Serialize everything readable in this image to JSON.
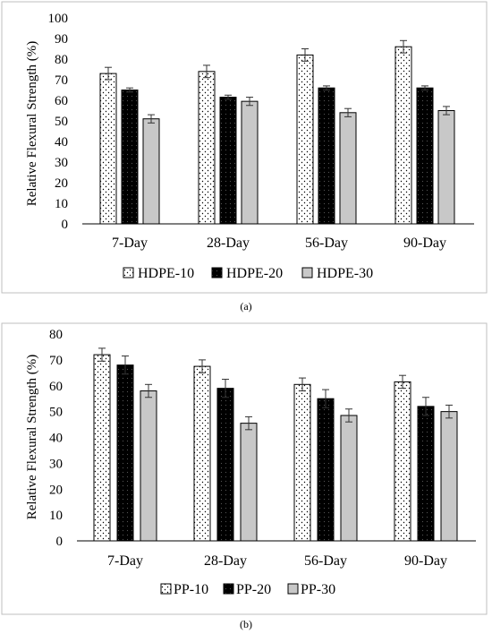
{
  "panels": [
    {
      "label": "(a)",
      "chart_data": {
        "type": "bar",
        "title": "",
        "xlabel": "",
        "ylabel": "Relative Flexural Strength (%)",
        "ylim": [
          0,
          100
        ],
        "yticks": [
          0,
          10,
          20,
          30,
          40,
          50,
          60,
          70,
          80,
          90,
          100
        ],
        "grid": false,
        "legend": "bottom",
        "categories": [
          "7-Day",
          "28-Day",
          "56-Day",
          "90-Day"
        ],
        "series": [
          {
            "name": "HDPE-10",
            "values": [
              73,
              74,
              82,
              86
            ],
            "errors": [
              3,
              3,
              3,
              3
            ],
            "pattern": "dots"
          },
          {
            "name": "HDPE-20",
            "values": [
              65,
              61.5,
              66,
              66
            ],
            "errors": [
              1,
              1,
              1,
              1
            ],
            "pattern": "black"
          },
          {
            "name": "HDPE-30",
            "values": [
              51,
              59.5,
              54,
              55
            ],
            "errors": [
              2,
              2,
              2,
              2
            ],
            "pattern": "gray"
          }
        ]
      }
    },
    {
      "label": "(b)",
      "chart_data": {
        "type": "bar",
        "title": "",
        "xlabel": "",
        "ylabel": "Relative Flexural Strength (%)",
        "ylim": [
          0,
          80
        ],
        "yticks": [
          0,
          10,
          20,
          30,
          40,
          50,
          60,
          70,
          80
        ],
        "grid": false,
        "legend": "bottom",
        "categories": [
          "7-Day",
          "28-Day",
          "56-Day",
          "90-Day"
        ],
        "series": [
          {
            "name": "PP-10",
            "values": [
              72,
              67.5,
              60.5,
              61.5
            ],
            "errors": [
              2.5,
              2.5,
              2.5,
              2.5
            ],
            "pattern": "dots"
          },
          {
            "name": "PP-20",
            "values": [
              68,
              59,
              55,
              52
            ],
            "errors": [
              3.5,
              3.5,
              3.5,
              3.5
            ],
            "pattern": "black"
          },
          {
            "name": "PP-30",
            "values": [
              58,
              45.5,
              48.5,
              50
            ],
            "errors": [
              2.5,
              2.5,
              2.5,
              2.5
            ],
            "pattern": "gray"
          }
        ]
      }
    }
  ],
  "colors": {
    "border": "#bfbfbf",
    "gray_fill": "#c8c8c8",
    "black_fill": "#000000",
    "dots": "#ffffff"
  }
}
